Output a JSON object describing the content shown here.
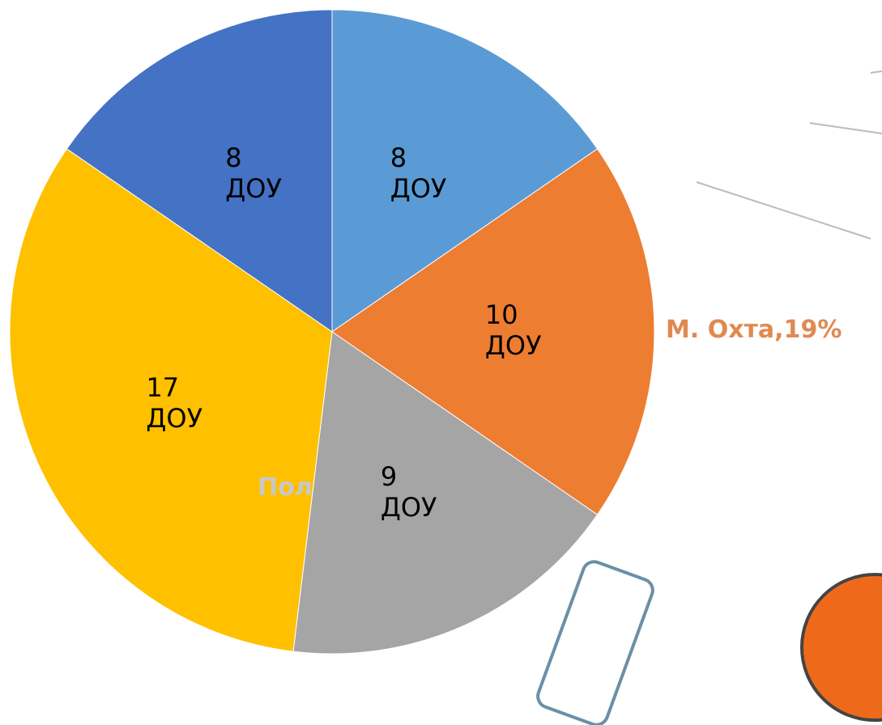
{
  "chart_data": {
    "type": "pie",
    "values": [
      8,
      10,
      9,
      17,
      8
    ],
    "value_labels": [
      "8 ДОУ",
      "10 ДОУ",
      "9 ДОУ",
      "17 ДОУ",
      "8 ДОУ"
    ],
    "colors": [
      "#5b9bd5",
      "#ed7d31",
      "#a5a5a5",
      "#ffc000",
      "#4472c4"
    ],
    "annotations": [
      "М. Охта,19%",
      "Пол"
    ]
  }
}
